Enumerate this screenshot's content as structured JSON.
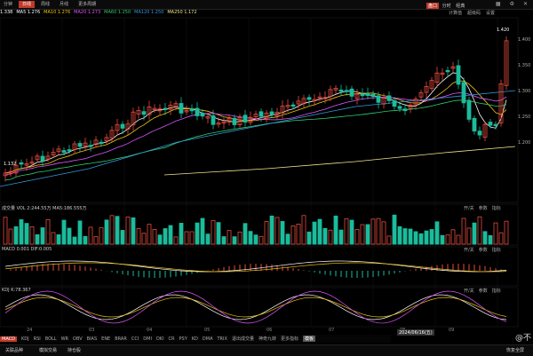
{
  "toolbar": {
    "tabs": [
      {
        "label": "分钟",
        "active": false
      },
      {
        "label": "日线",
        "active": true
      },
      {
        "label": "周线",
        "active": false
      },
      {
        "label": "月线",
        "active": false
      },
      {
        "label": "更多周期",
        "active": false
      }
    ],
    "right_icons": [
      "grid-icon",
      "settings-icon",
      "close-icon"
    ]
  },
  "legend": {
    "price": "1.338",
    "ma5": "MA5 1.276",
    "ma10": "MA10 1.276",
    "ma20": "MA20 1.273",
    "ma60": "MA60 1.250",
    "ma120": "MA120 1.250",
    "ma250": "MA250 1.172"
  },
  "right_panel": {
    "headers": [
      "计算值",
      "超级码",
      "设置"
    ],
    "tabs": [
      {
        "label": "盘口",
        "active": true
      },
      {
        "label": "分时",
        "active": false
      },
      {
        "label": "经典",
        "active": false
      }
    ]
  },
  "price_panel": {
    "high_label": "1.420",
    "low_label": "1.132",
    "right_values": [
      "1.400",
      "1.350",
      "1.300",
      "1.250",
      "1.200"
    ]
  },
  "volume_panel": {
    "label": "成交量 VOL 2:244.55万 MA5:186.555万",
    "controls": [
      "开/关",
      "参数",
      "指标"
    ]
  },
  "macd_panel": {
    "label": "MACD 0.001 DIF:0.005",
    "controls": [
      "开/关",
      "参数",
      "指标"
    ]
  },
  "kdj_panel": {
    "label": "KDJ K:78.367",
    "controls": [
      "开/关",
      "参数",
      "指标"
    ]
  },
  "indicator_tabs": [
    {
      "label": "MACD",
      "state": "active"
    },
    {
      "label": "KDJ",
      "state": ""
    },
    {
      "label": "RSI",
      "state": ""
    },
    {
      "label": "BOLL",
      "state": ""
    },
    {
      "label": "WR",
      "state": ""
    },
    {
      "label": "OBV",
      "state": ""
    },
    {
      "label": "BIAS",
      "state": ""
    },
    {
      "label": "ENE",
      "state": ""
    },
    {
      "label": "BRAR",
      "state": ""
    },
    {
      "label": "CCI",
      "state": ""
    },
    {
      "label": "DMI",
      "state": ""
    },
    {
      "label": "DKI",
      "state": ""
    },
    {
      "label": "CR",
      "state": ""
    },
    {
      "label": "PSY",
      "state": ""
    },
    {
      "label": "KD",
      "state": ""
    },
    {
      "label": "DMA",
      "state": ""
    },
    {
      "label": "TRIX",
      "state": ""
    },
    {
      "label": "退出成交量",
      "state": ""
    },
    {
      "label": "神奇九转",
      "state": ""
    },
    {
      "label": "更多指标",
      "state": ""
    },
    {
      "label": "模板",
      "state": "sel"
    }
  ],
  "date_axis": {
    "labels": [
      "24",
      "03",
      "04",
      "05",
      "06",
      "07",
      "08",
      "09"
    ],
    "highlight": "2024/06/16(五)"
  },
  "bottom_tabs": [
    "关联品种",
    "模拟交易",
    "持仓股"
  ],
  "bottom_right": "恢复全屏",
  "watermark": "@不"
}
